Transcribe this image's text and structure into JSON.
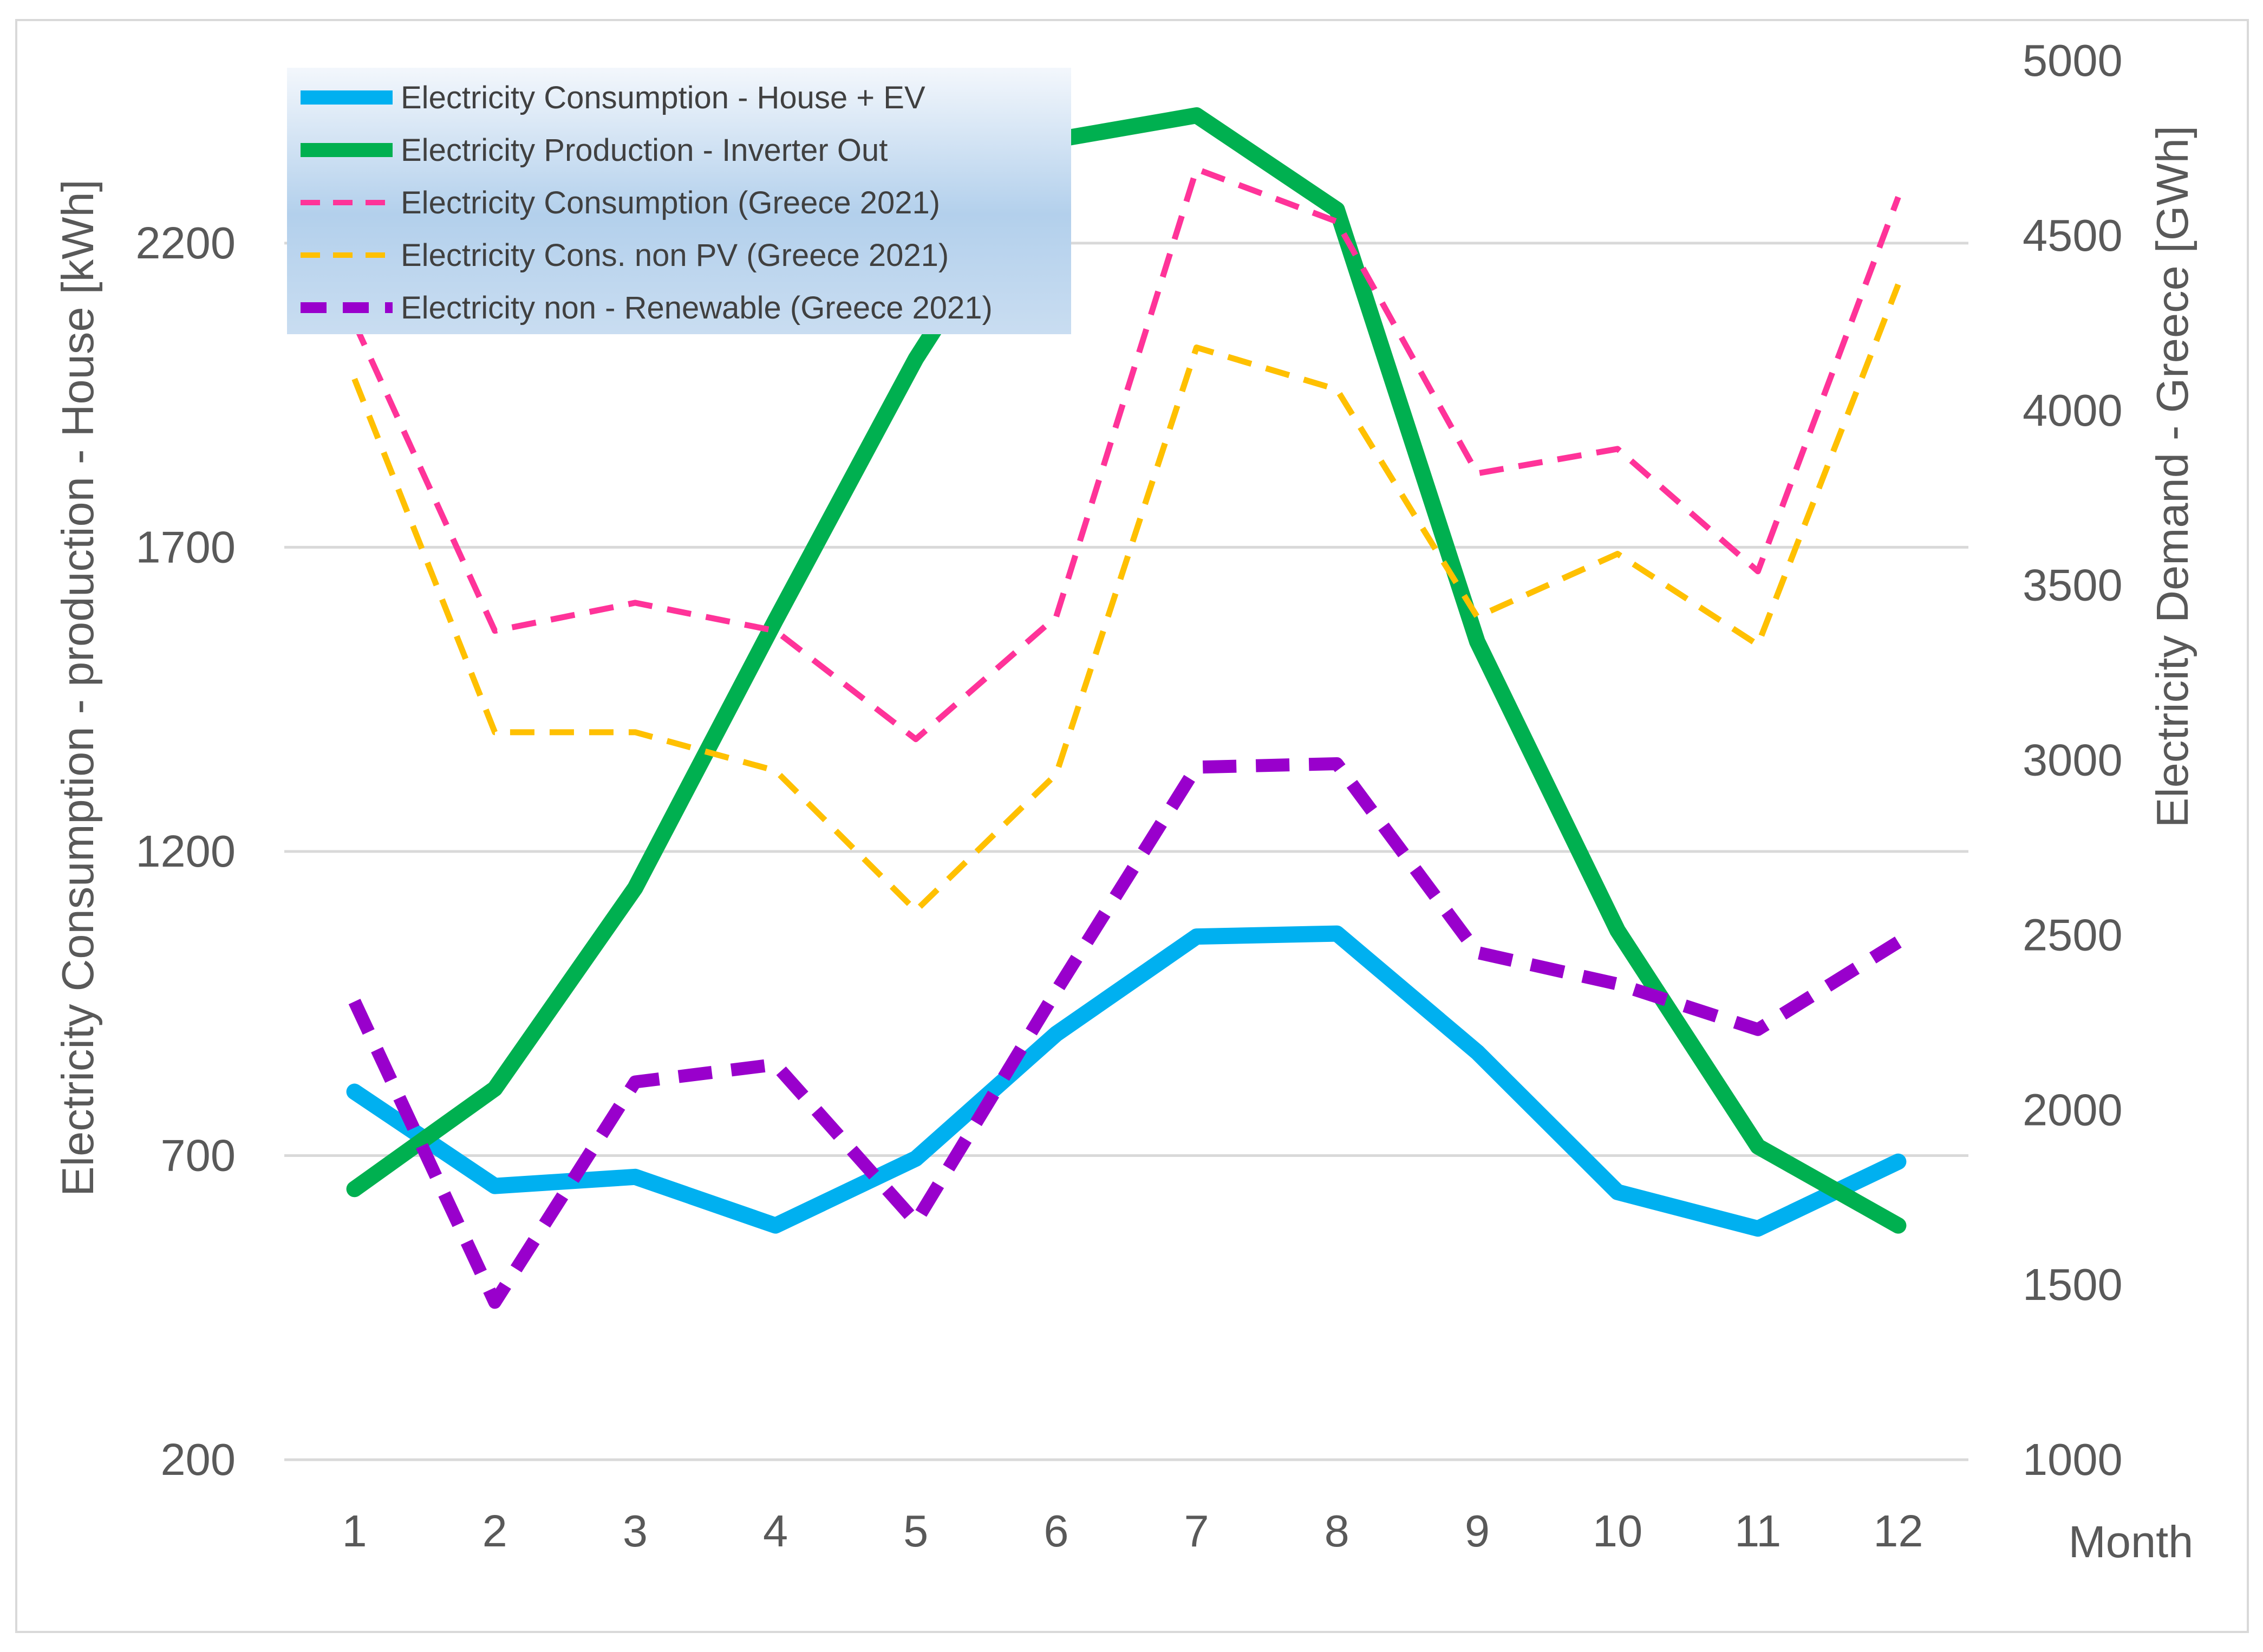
{
  "chart_data": {
    "type": "line",
    "title": "",
    "xlabel": "Month",
    "ylabel_left": "Electricity Consumption - production - House [kWh]",
    "ylabel_right": "Electricity Demand - Greece  [GWh]",
    "ylim_left": [
      200,
      2500
    ],
    "ylim_right": [
      1000,
      5000
    ],
    "yticks_left": [
      200,
      700,
      1200,
      1700,
      2200
    ],
    "yticks_right": [
      1000,
      1500,
      2000,
      2500,
      3000,
      3500,
      4000,
      4500,
      5000
    ],
    "grid": true,
    "legend_position": "top-left",
    "categories": [
      "1",
      "2",
      "3",
      "4",
      "5",
      "6",
      "7",
      "8",
      "9",
      "10",
      "11",
      "12"
    ],
    "series": [
      {
        "name": "Electricity Consumption - House + EV",
        "axis": "left",
        "color": "#00b0f0",
        "style": "solid-thick",
        "values": [
          805,
          650,
          665,
          585,
          695,
          900,
          1060,
          1065,
          870,
          640,
          580,
          690
        ]
      },
      {
        "name": "Electricity Production - Inverter Out",
        "axis": "left",
        "color": "#00b050",
        "style": "solid-thick",
        "values": [
          645,
          810,
          1140,
          1580,
          2010,
          2370,
          2410,
          2255,
          1545,
          1070,
          715,
          585
        ]
      },
      {
        "name": "Electricity Consumption (Greece 2021)",
        "axis": "right",
        "color": "#ff3399",
        "style": "dashed-thin",
        "values": [
          4250,
          3370,
          3450,
          3370,
          3060,
          3410,
          4690,
          4540,
          3820,
          3890,
          3540,
          4610
        ]
      },
      {
        "name": "Electricity Cons. non PV (Greece 2021)",
        "axis": "right",
        "color": "#ffc000",
        "style": "dashed-thin",
        "values": [
          4090,
          3080,
          3080,
          2970,
          2570,
          2960,
          4180,
          4060,
          3410,
          3590,
          3330,
          4360
        ]
      },
      {
        "name": "Electricity non - Renewable (Greece 2021)",
        "axis": "right",
        "color": "#9900cc",
        "style": "dashed-thick",
        "values": [
          2310,
          1450,
          2080,
          2130,
          1680,
          2340,
          2980,
          2990,
          2450,
          2360,
          2230,
          2480
        ]
      }
    ]
  }
}
